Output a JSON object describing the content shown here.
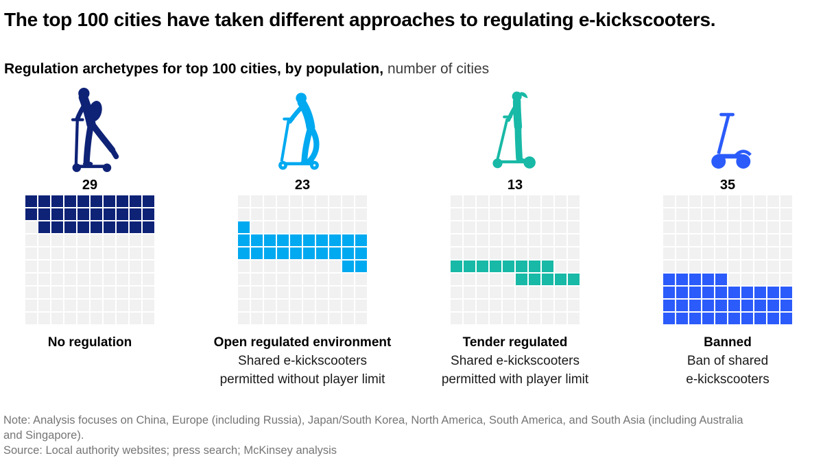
{
  "title": "The top 100 cities have taken different approaches to regulating e-kickscooters.",
  "subtitle": {
    "bold": "Regulation archetypes for top 100 cities, by population,",
    "regular": " number of cities"
  },
  "chart_data": {
    "type": "waffle",
    "title": "Regulation archetypes for top 100 cities, by population",
    "unit": "number of cities",
    "total_cells": 100,
    "grid": {
      "rows": 10,
      "cols": 10
    },
    "empty_color": "#f1f1f1",
    "categories": [
      {
        "label": "No regulation",
        "sublabel": "",
        "count": 29,
        "color": "#0e2276",
        "icon": "person-with-backpack-on-kickscooter-icon",
        "pattern": [
          "1111111111",
          "1111111111",
          "0111111111",
          "0000000000",
          "0000000000",
          "0000000000",
          "0000000000",
          "0000000000",
          "0000000000",
          "0000000000"
        ]
      },
      {
        "label": "Open regulated environment",
        "sublabel": "Shared e-kickscooters\npermitted without player limit",
        "count": 23,
        "color": "#00a9f0",
        "icon": "man-riding-kickscooter-icon",
        "pattern": [
          "0000000000",
          "0000000000",
          "1000000000",
          "1111111111",
          "1111111111",
          "0000000011",
          "0000000000",
          "0000000000",
          "0000000000",
          "0000000000"
        ]
      },
      {
        "label": "Tender regulated",
        "sublabel": "Shared e-kickscooters\npermitted with player limit",
        "count": 13,
        "color": "#18b9a6",
        "icon": "woman-standing-on-kickscooter-icon",
        "pattern": [
          "0000000000",
          "0000000000",
          "0000000000",
          "0000000000",
          "0000000000",
          "1111111100",
          "0000011111",
          "0000000000",
          "0000000000",
          "0000000000"
        ]
      },
      {
        "label": "Banned",
        "sublabel": "Ban of shared\ne-kickscooters",
        "count": 35,
        "color": "#2b5bfa",
        "icon": "e-kickscooter-icon",
        "pattern": [
          "0000000000",
          "0000000000",
          "0000000000",
          "0000000000",
          "0000000000",
          "0000000000",
          "1111100000",
          "1111111111",
          "1111111111",
          "1111111111"
        ]
      }
    ]
  },
  "footer": {
    "note": "Note: Analysis focuses on China, Europe (including Russia), Japan/South Korea, North America, South America, and South Asia (including Australia\nand Singapore).",
    "source": "Source: Local authority websites; press search; McKinsey analysis"
  }
}
